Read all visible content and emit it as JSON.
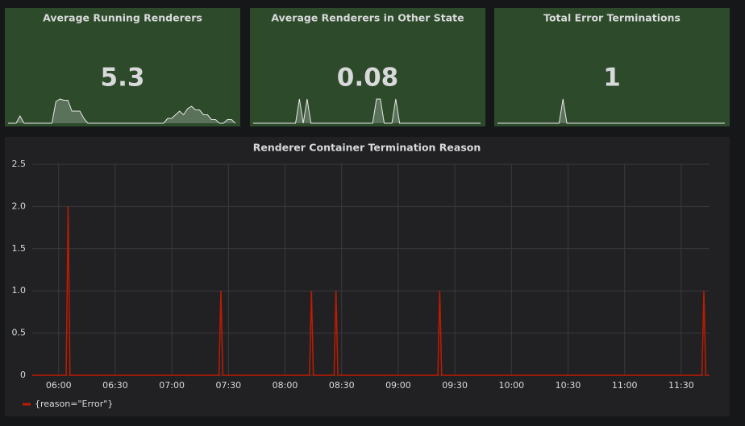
{
  "stat_panels": [
    {
      "title": "Average Running Renderers",
      "value": 5.3,
      "sparkline": [
        0,
        0,
        0,
        0.3,
        0,
        0,
        0,
        0,
        0,
        0,
        0,
        0,
        0.9,
        1,
        0.95,
        0.95,
        0.5,
        0.5,
        0.5,
        0.2,
        0,
        0,
        0,
        0,
        0,
        0,
        0,
        0,
        0,
        0,
        0,
        0,
        0,
        0,
        0,
        0,
        0,
        0,
        0,
        0,
        0.2,
        0.2,
        0.35,
        0.5,
        0.35,
        0.6,
        0.7,
        0.55,
        0.55,
        0.35,
        0.35,
        0.15,
        0.15,
        0,
        0,
        0.15,
        0.15,
        0
      ]
    },
    {
      "title": "Average Renderers in Other State",
      "value": 0.08,
      "sparkline": [
        0,
        0,
        0,
        0,
        0,
        0,
        0,
        0,
        0,
        0,
        0,
        0,
        1,
        0,
        1,
        0,
        0,
        0,
        0,
        0,
        0,
        0,
        0,
        0,
        0,
        0,
        0,
        0,
        0,
        0,
        0,
        0,
        1,
        1,
        0,
        0,
        0,
        1,
        0,
        0,
        0,
        0,
        0,
        0,
        0,
        0,
        0,
        0,
        0,
        0,
        0,
        0,
        0,
        0,
        0,
        0,
        0,
        0,
        0,
        0
      ]
    },
    {
      "title": "Total Error Terminations",
      "value": 1,
      "sparkline": [
        0,
        0,
        0,
        0,
        0,
        0,
        0,
        0,
        0,
        0,
        0,
        0,
        0,
        0,
        0,
        0,
        0,
        1,
        0,
        0,
        0,
        0,
        0,
        0,
        0,
        0,
        0,
        0,
        0,
        0,
        0,
        0,
        0,
        0,
        0,
        0,
        0,
        0,
        0,
        0,
        0,
        0,
        0,
        0,
        0,
        0,
        0,
        0,
        0,
        0,
        0,
        0,
        0,
        0,
        0,
        0,
        0,
        0,
        0,
        0
      ]
    }
  ],
  "chart_data": {
    "type": "line",
    "title": "Renderer Container Termination Reason",
    "x": [
      346,
      364,
      365,
      366,
      445,
      446,
      447,
      493,
      494,
      495,
      506,
      507,
      508,
      561,
      562,
      563,
      701,
      702,
      703,
      705
    ],
    "series": [
      {
        "name": "{reason=\"Error\"}",
        "color": "#bf1b00",
        "values": [
          0,
          0,
          2,
          0,
          0,
          1,
          0,
          0,
          1,
          0,
          0,
          1,
          0,
          0,
          1,
          0,
          0,
          1,
          0,
          0
        ]
      }
    ],
    "xlim": [
      346,
      705
    ],
    "xticks": [
      {
        "value": 360,
        "label": "06:00"
      },
      {
        "value": 390,
        "label": "06:30"
      },
      {
        "value": 420,
        "label": "07:00"
      },
      {
        "value": 450,
        "label": "07:30"
      },
      {
        "value": 480,
        "label": "08:00"
      },
      {
        "value": 510,
        "label": "08:30"
      },
      {
        "value": 540,
        "label": "09:00"
      },
      {
        "value": 570,
        "label": "09:30"
      },
      {
        "value": 600,
        "label": "10:00"
      },
      {
        "value": 630,
        "label": "10:30"
      },
      {
        "value": 660,
        "label": "11:00"
      },
      {
        "value": 690,
        "label": "11:30"
      }
    ],
    "ylim": [
      0,
      2.5
    ],
    "yticks": [
      0,
      0.5,
      {
        "value": 1,
        "label": "1.0"
      },
      1.5,
      {
        "value": 2,
        "label": "2.0"
      },
      2.5
    ],
    "grid": true
  }
}
